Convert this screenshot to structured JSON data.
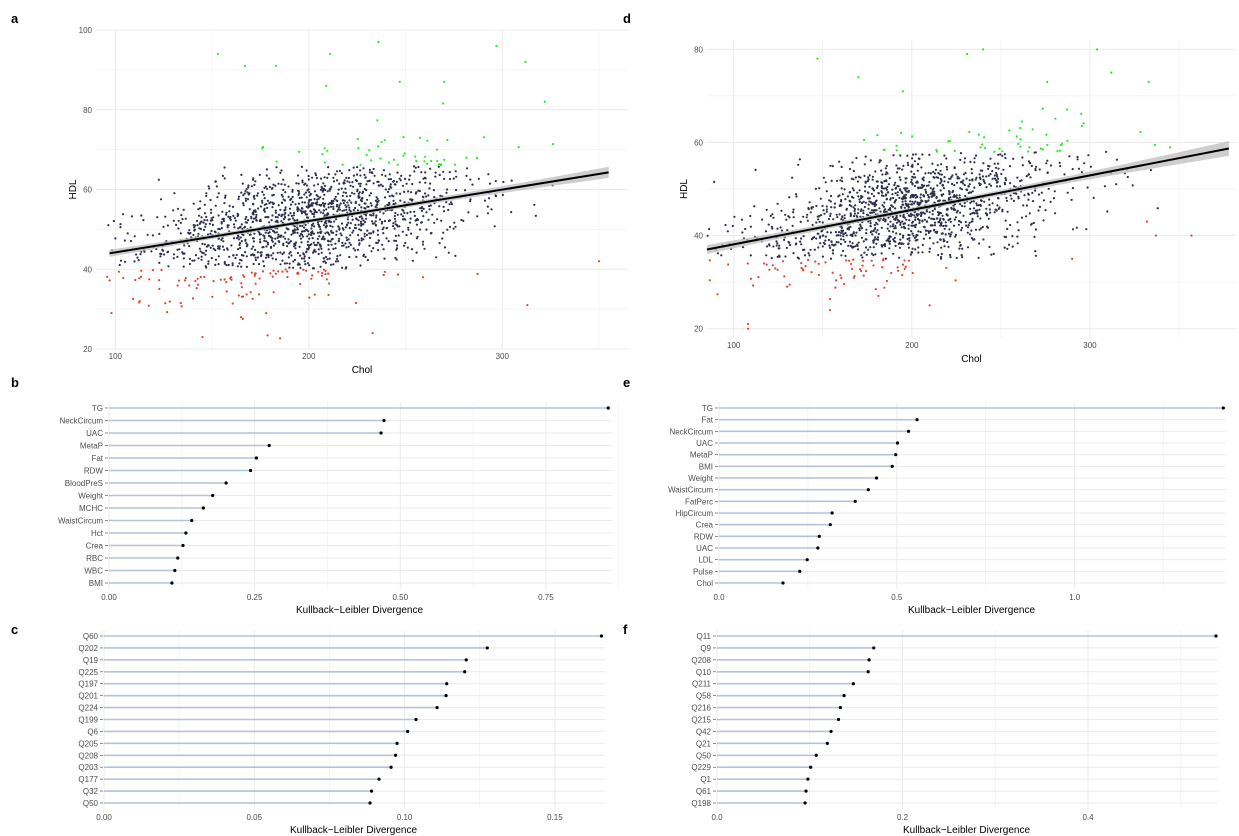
{
  "colors": {
    "normal": "#2e2e4d",
    "high": "#22ee22",
    "low": "#e0452f",
    "fit": "#000000",
    "band": "#bdbdbd",
    "stem": "#b3c3d8",
    "dot": "#000000",
    "grid": "#ebebeb"
  },
  "chart_data": [
    {
      "panel": "a",
      "type": "scatter",
      "xlabel": "Chol",
      "ylabel": "HDL",
      "xlim": [
        90,
        365
      ],
      "ylim": [
        20,
        100
      ],
      "xticks": [
        100,
        200,
        300
      ],
      "yticks": [
        20,
        40,
        60,
        80,
        100
      ],
      "grid": true,
      "cloud": {
        "x_center": 200,
        "x_sd": 42,
        "x_min": 95,
        "x_max": 362,
        "y_sd": 7,
        "y_min": 22,
        "y_max": 98,
        "high_threshold": 66,
        "low_threshold": 40,
        "n": 1600
      },
      "fit": {
        "x": [
          97,
          355
        ],
        "y": [
          44,
          64.3
        ],
        "band_halfwidth_ends": 1.4,
        "band_halfwidth_mid": 0.5,
        "x_mid": 200
      },
      "series": [
        {
          "name": "",
          "group": "high",
          "points": [
            [
              153,
              94
            ],
            [
              211,
              94
            ],
            [
              236,
              97
            ],
            [
              297,
              96
            ],
            [
              312,
              92
            ],
            [
              322,
              82
            ],
            [
              167,
              91
            ],
            [
              183,
              91
            ],
            [
              209,
              86
            ],
            [
              247,
              87
            ],
            [
              270,
              87
            ]
          ]
        },
        {
          "name": "",
          "group": "low",
          "points": [
            [
              98,
              29
            ],
            [
              145,
              23
            ],
            [
              165,
              28
            ],
            [
              178,
              29
            ],
            [
              233,
              24
            ],
            [
              259,
              38
            ],
            [
              313,
              31
            ],
            [
              350,
              42
            ]
          ]
        }
      ]
    },
    {
      "panel": "d",
      "type": "scatter",
      "xlabel": "Chol",
      "ylabel": "HDL",
      "xlim": [
        85,
        382
      ],
      "ylim": [
        18,
        82
      ],
      "xticks": [
        100,
        200,
        300
      ],
      "yticks": [
        20,
        40,
        60,
        80
      ],
      "grid": true,
      "cloud": {
        "x_center": 200,
        "x_sd": 42,
        "x_min": 85,
        "x_max": 380,
        "y_sd": 6,
        "y_min": 19,
        "y_max": 80,
        "high_threshold": 58,
        "low_threshold": 35,
        "n": 1500
      },
      "fit": {
        "x": [
          85,
          378
        ],
        "y": [
          37,
          58.7
        ],
        "band_halfwidth_ends": 1.6,
        "band_halfwidth_mid": 0.5,
        "x_mid": 200
      },
      "series": [
        {
          "name": "",
          "group": "high",
          "points": [
            [
              147,
              78
            ],
            [
              231,
              79
            ],
            [
              240,
              80
            ],
            [
              304,
              80
            ],
            [
              312,
              75
            ],
            [
              333,
              73
            ],
            [
              170,
              74
            ],
            [
              195,
              71
            ],
            [
              276,
              73
            ]
          ]
        },
        {
          "name": "",
          "group": "low",
          "points": [
            [
              108,
              20
            ],
            [
              108,
              21
            ],
            [
              154,
              24
            ],
            [
              210,
              25
            ],
            [
              337,
              40
            ],
            [
              357,
              40
            ],
            [
              332,
              43
            ],
            [
              290,
              35
            ]
          ]
        }
      ]
    },
    {
      "panel": "b",
      "type": "lollipop",
      "xlabel": "Kullback−Leibler Divergence",
      "xlim": [
        0,
        0.86
      ],
      "xticks": [
        0,
        0.25,
        0.5,
        0.75
      ],
      "xtick_labels": [
        "0.00",
        "0.25",
        "0.50",
        "0.75"
      ],
      "categories": [
        "TG",
        "NeckCircum",
        "UAC",
        "MetaP",
        "Fat",
        "RDW",
        "BloodPreS",
        "Weight",
        "MCHC",
        "WaistCircum",
        "Hct",
        "Crea",
        "RBC",
        "WBC",
        "BMI"
      ],
      "values": [
        0.857,
        0.472,
        0.467,
        0.275,
        0.253,
        0.243,
        0.201,
        0.178,
        0.162,
        0.142,
        0.132,
        0.127,
        0.118,
        0.113,
        0.108
      ]
    },
    {
      "panel": "e",
      "type": "lollipop",
      "xlabel": "Kullback−Leibler Divergence",
      "xlim": [
        0,
        1.42
      ],
      "xticks": [
        0,
        0.5,
        1.0
      ],
      "xtick_labels": [
        "0.0",
        "0.5",
        "1.0"
      ],
      "categories": [
        "TG",
        "Fat",
        "NeckCircum",
        "UAC",
        "MetaP",
        "BMI",
        "Weight",
        "WaistCircum",
        "FatPerc",
        "HipCircum",
        "Crea",
        "RDW",
        "UAC",
        "LDL",
        "Pulse",
        "Chol"
      ],
      "values": [
        1.418,
        0.557,
        0.533,
        0.502,
        0.497,
        0.487,
        0.443,
        0.42,
        0.383,
        0.318,
        0.313,
        0.282,
        0.278,
        0.248,
        0.227,
        0.18
      ]
    },
    {
      "panel": "c",
      "type": "lollipop",
      "xlabel": "Kullback−Leibler Divergence",
      "xlim": [
        0,
        0.166
      ],
      "xticks": [
        0,
        0.05,
        0.1,
        0.15
      ],
      "xtick_labels": [
        "0.00",
        "0.05",
        "0.10",
        "0.15"
      ],
      "categories": [
        "Q60",
        "Q202",
        "Q19",
        "Q225",
        "Q197",
        "Q201",
        "Q224",
        "Q199",
        "Q6",
        "Q205",
        "Q208",
        "Q203",
        "Q177",
        "Q32",
        "Q50"
      ],
      "values": [
        0.1655,
        0.1275,
        0.1205,
        0.12,
        0.114,
        0.1138,
        0.1108,
        0.1038,
        0.101,
        0.0975,
        0.097,
        0.0955,
        0.0915,
        0.089,
        0.0885
      ]
    },
    {
      "panel": "f",
      "type": "lollipop",
      "xlabel": "Kullback−Leibler Divergence",
      "xlim": [
        0,
        0.538
      ],
      "xticks": [
        0,
        0.2,
        0.4
      ],
      "xtick_labels": [
        "0.0",
        "0.2",
        "0.4"
      ],
      "categories": [
        "Q11",
        "Q9",
        "Q208",
        "Q10",
        "Q211",
        "Q58",
        "Q216",
        "Q215",
        "Q42",
        "Q21",
        "Q50",
        "Q229",
        "Q1",
        "Q61",
        "Q198"
      ],
      "values": [
        0.538,
        0.169,
        0.164,
        0.163,
        0.147,
        0.137,
        0.133,
        0.131,
        0.123,
        0.119,
        0.107,
        0.101,
        0.098,
        0.096,
        0.095
      ]
    }
  ]
}
